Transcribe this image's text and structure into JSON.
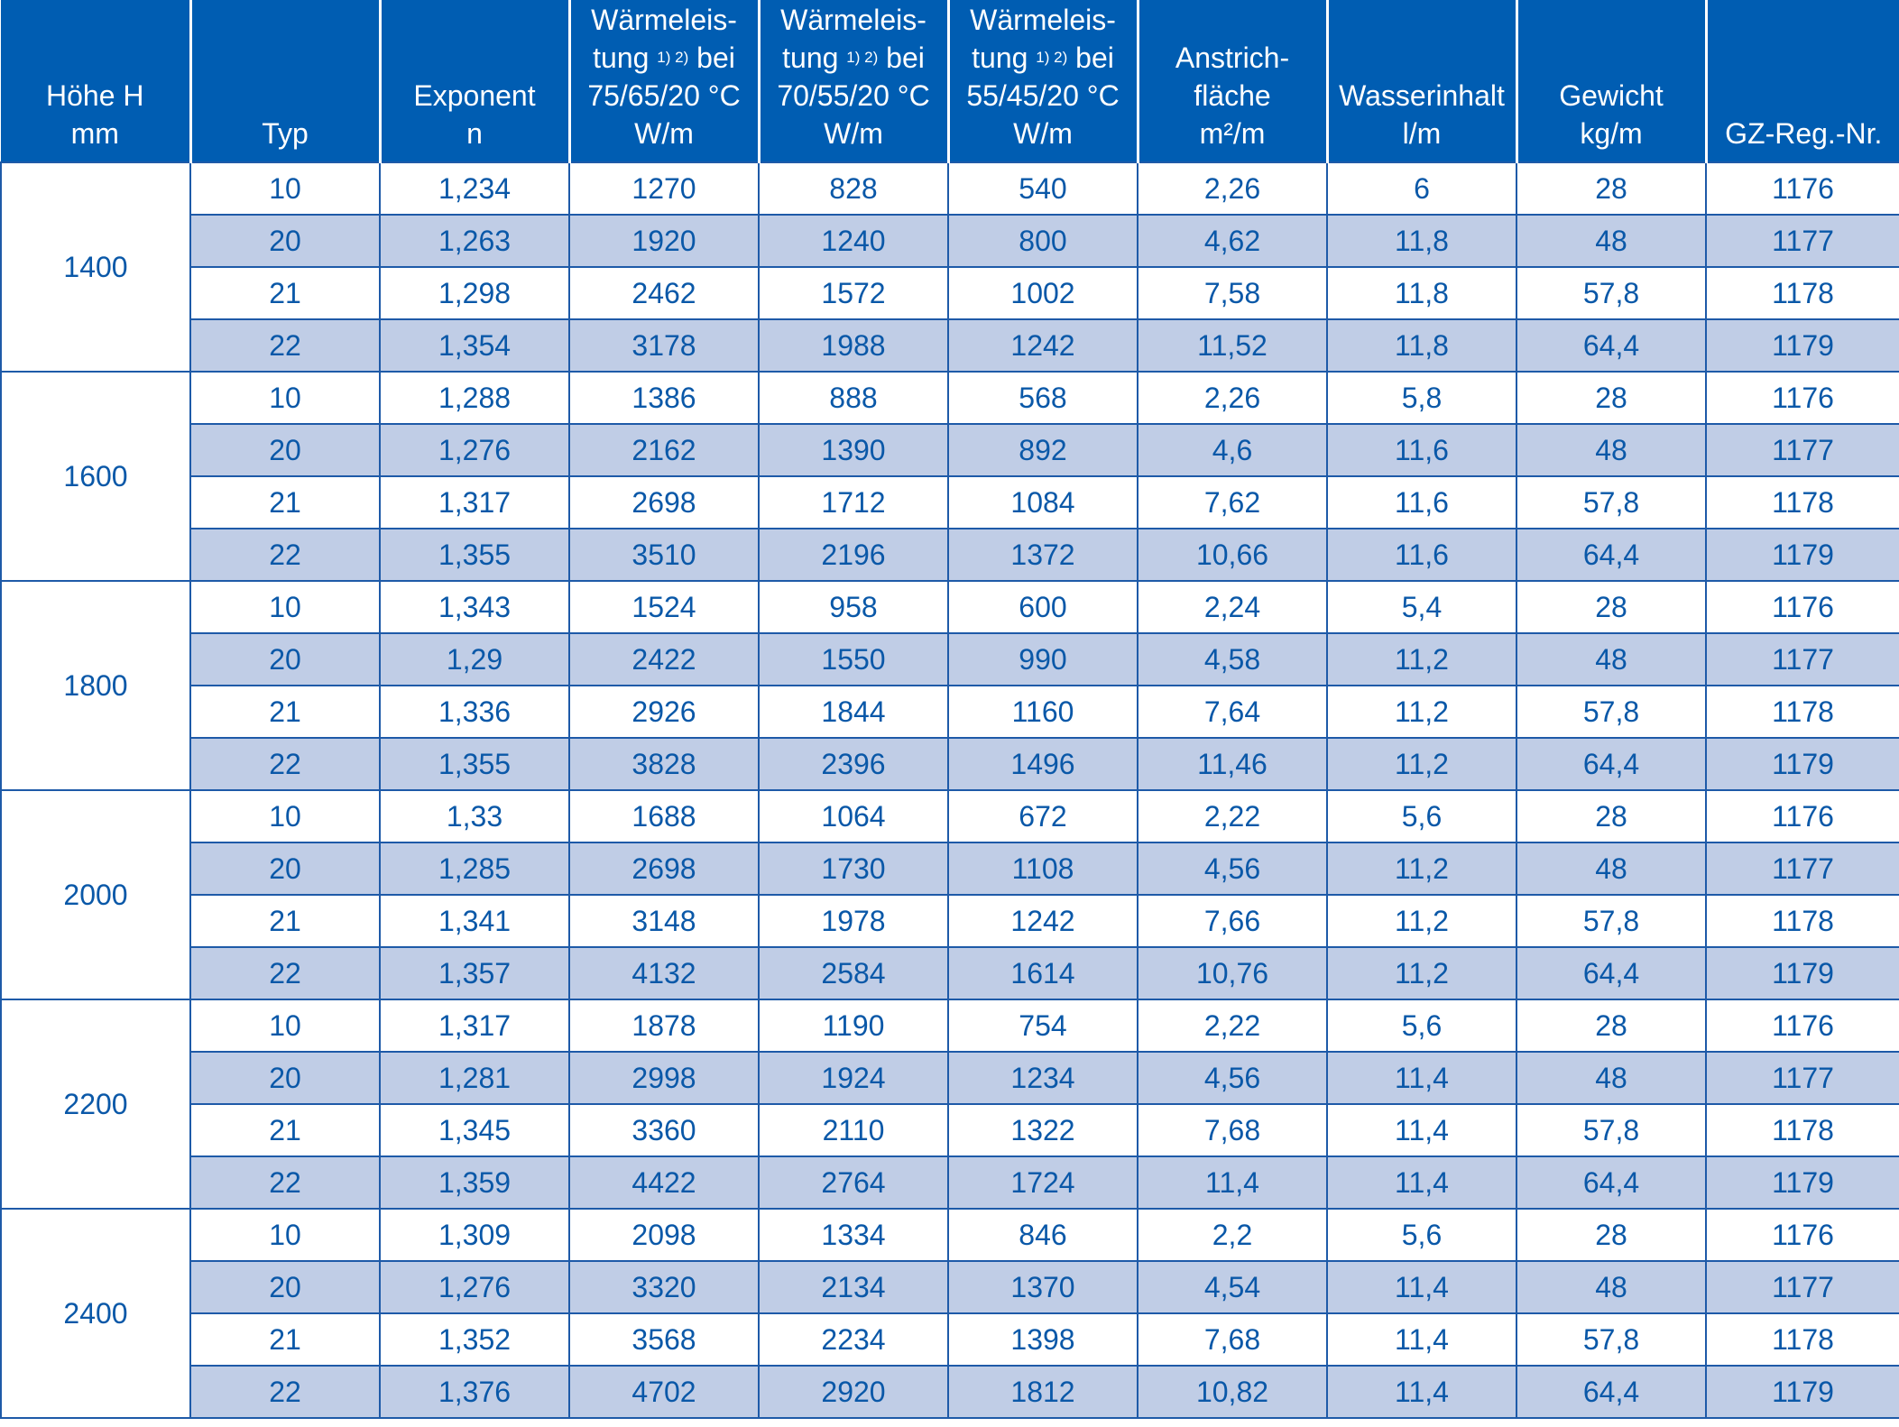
{
  "table": {
    "headers": [
      {
        "lines": [
          "Höhe H",
          "mm"
        ]
      },
      {
        "lines": [
          "Typ"
        ]
      },
      {
        "lines": [
          "Exponent",
          "n"
        ]
      },
      {
        "lines": [
          "Wärmeleis-",
          "tung {sup} bei",
          "75/65/20 °C",
          "W/m"
        ],
        "sup": "1) 2)"
      },
      {
        "lines": [
          "Wärmeleis-",
          "tung {sup} bei",
          "70/55/20 °C",
          "W/m"
        ],
        "sup": "1) 2)"
      },
      {
        "lines": [
          "Wärmeleis-",
          "tung {sup} bei",
          "55/45/20 °C",
          "W/m"
        ],
        "sup": "1) 2)"
      },
      {
        "lines": [
          "Anstrich-",
          "fläche",
          "m²/m"
        ]
      },
      {
        "lines": [
          "Wasserinhalt",
          "l/m"
        ]
      },
      {
        "lines": [
          "Gewicht",
          "kg/m"
        ]
      },
      {
        "lines": [
          "GZ-Reg.-Nr."
        ]
      }
    ],
    "groups": [
      {
        "height": "1400",
        "rows": [
          [
            "10",
            "1,234",
            "1270",
            "828",
            "540",
            "2,26",
            "6",
            "28",
            "1176"
          ],
          [
            "20",
            "1,263",
            "1920",
            "1240",
            "800",
            "4,62",
            "11,8",
            "48",
            "1177"
          ],
          [
            "21",
            "1,298",
            "2462",
            "1572",
            "1002",
            "7,58",
            "11,8",
            "57,8",
            "1178"
          ],
          [
            "22",
            "1,354",
            "3178",
            "1988",
            "1242",
            "11,52",
            "11,8",
            "64,4",
            "1179"
          ]
        ]
      },
      {
        "height": "1600",
        "rows": [
          [
            "10",
            "1,288",
            "1386",
            "888",
            "568",
            "2,26",
            "5,8",
            "28",
            "1176"
          ],
          [
            "20",
            "1,276",
            "2162",
            "1390",
            "892",
            "4,6",
            "11,6",
            "48",
            "1177"
          ],
          [
            "21",
            "1,317",
            "2698",
            "1712",
            "1084",
            "7,62",
            "11,6",
            "57,8",
            "1178"
          ],
          [
            "22",
            "1,355",
            "3510",
            "2196",
            "1372",
            "10,66",
            "11,6",
            "64,4",
            "1179"
          ]
        ]
      },
      {
        "height": "1800",
        "rows": [
          [
            "10",
            "1,343",
            "1524",
            "958",
            "600",
            "2,24",
            "5,4",
            "28",
            "1176"
          ],
          [
            "20",
            "1,29",
            "2422",
            "1550",
            "990",
            "4,58",
            "11,2",
            "48",
            "1177"
          ],
          [
            "21",
            "1,336",
            "2926",
            "1844",
            "1160",
            "7,64",
            "11,2",
            "57,8",
            "1178"
          ],
          [
            "22",
            "1,355",
            "3828",
            "2396",
            "1496",
            "11,46",
            "11,2",
            "64,4",
            "1179"
          ]
        ]
      },
      {
        "height": "2000",
        "rows": [
          [
            "10",
            "1,33",
            "1688",
            "1064",
            "672",
            "2,22",
            "5,6",
            "28",
            "1176"
          ],
          [
            "20",
            "1,285",
            "2698",
            "1730",
            "1108",
            "4,56",
            "11,2",
            "48",
            "1177"
          ],
          [
            "21",
            "1,341",
            "3148",
            "1978",
            "1242",
            "7,66",
            "11,2",
            "57,8",
            "1178"
          ],
          [
            "22",
            "1,357",
            "4132",
            "2584",
            "1614",
            "10,76",
            "11,2",
            "64,4",
            "1179"
          ]
        ]
      },
      {
        "height": "2200",
        "rows": [
          [
            "10",
            "1,317",
            "1878",
            "1190",
            "754",
            "2,22",
            "5,6",
            "28",
            "1176"
          ],
          [
            "20",
            "1,281",
            "2998",
            "1924",
            "1234",
            "4,56",
            "11,4",
            "48",
            "1177"
          ],
          [
            "21",
            "1,345",
            "3360",
            "2110",
            "1322",
            "7,68",
            "11,4",
            "57,8",
            "1178"
          ],
          [
            "22",
            "1,359",
            "4422",
            "2764",
            "1724",
            "11,4",
            "11,4",
            "64,4",
            "1179"
          ]
        ]
      },
      {
        "height": "2400",
        "rows": [
          [
            "10",
            "1,309",
            "2098",
            "1334",
            "846",
            "2,2",
            "5,6",
            "28",
            "1176"
          ],
          [
            "20",
            "1,276",
            "3320",
            "2134",
            "1370",
            "4,54",
            "11,4",
            "48",
            "1177"
          ],
          [
            "21",
            "1,352",
            "3568",
            "2234",
            "1398",
            "7,68",
            "11,4",
            "57,8",
            "1178"
          ],
          [
            "22",
            "1,376",
            "4702",
            "2920",
            "1812",
            "10,82",
            "11,4",
            "64,4",
            "1179"
          ]
        ]
      }
    ]
  }
}
